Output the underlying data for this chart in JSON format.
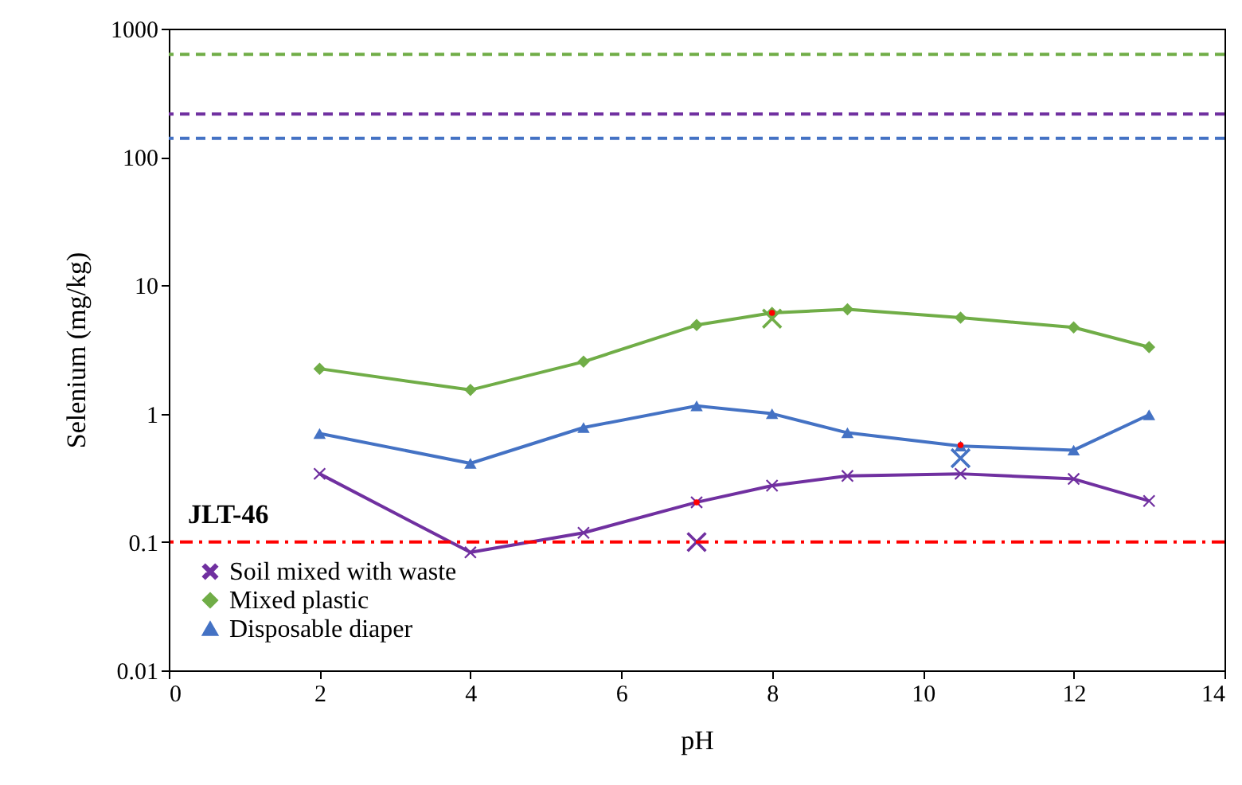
{
  "chart_data": {
    "type": "line",
    "xlabel": "pH",
    "ylabel": "Selenium (mg/kg)",
    "log": true,
    "xlim": [
      0,
      14
    ],
    "xticks": [
      0,
      2,
      4,
      6,
      8,
      10,
      12,
      14
    ],
    "ylim": [
      0.01,
      1000
    ],
    "yticks": [
      0.01,
      0.1,
      1,
      10,
      100,
      1000
    ],
    "grid": false,
    "legend": "bottom left",
    "x": [
      2,
      4,
      5.5,
      7,
      8,
      9,
      10.5,
      12,
      13
    ],
    "series": [
      {
        "name": "Soil mixed with waste",
        "color": "#7030a0",
        "marker": "cross",
        "values": [
          0.34,
          0.083,
          0.118,
          0.204,
          0.275,
          0.327,
          0.34,
          0.31,
          0.209
        ]
      },
      {
        "name": "Mixed plastic",
        "color": "#70ad47",
        "marker": "diamond",
        "values": [
          2.24,
          1.53,
          2.54,
          4.9,
          6.1,
          6.5,
          5.6,
          4.7,
          3.3
        ]
      },
      {
        "name": "Disposable diaper",
        "color": "#4472c4",
        "marker": "triangle",
        "values": [
          0.7,
          0.41,
          0.78,
          1.15,
          1.0,
          0.71,
          0.56,
          0.52,
          0.98
        ]
      },
      {
        "type": "scatter",
        "marker": "cross",
        "x": [
          7,
          8,
          10.5
        ],
        "colors": [
          "#7030a0",
          "#70ad47",
          "#4472c4"
        ],
        "values": [
          0.1,
          5.5,
          0.45
        ]
      },
      {
        "type": "scatter",
        "marker": "circle",
        "x": [
          7,
          8,
          10.5
        ],
        "color": "#ff0000",
        "values": [
          0.204,
          6.1,
          0.57
        ]
      }
    ],
    "ref_lines": [
      {
        "axis": "y",
        "value": 630,
        "color": "#70ad47",
        "line_style": "dashed"
      },
      {
        "axis": "y",
        "value": 216,
        "color": "#7030a0",
        "line_style": "dashed"
      },
      {
        "axis": "y",
        "value": 140,
        "color": "#4472c4",
        "line_style": "dashed"
      },
      {
        "axis": "y",
        "value": 0.1,
        "color": "#ff0000",
        "line_style": "dashdot",
        "label": "JLT-46"
      }
    ]
  }
}
